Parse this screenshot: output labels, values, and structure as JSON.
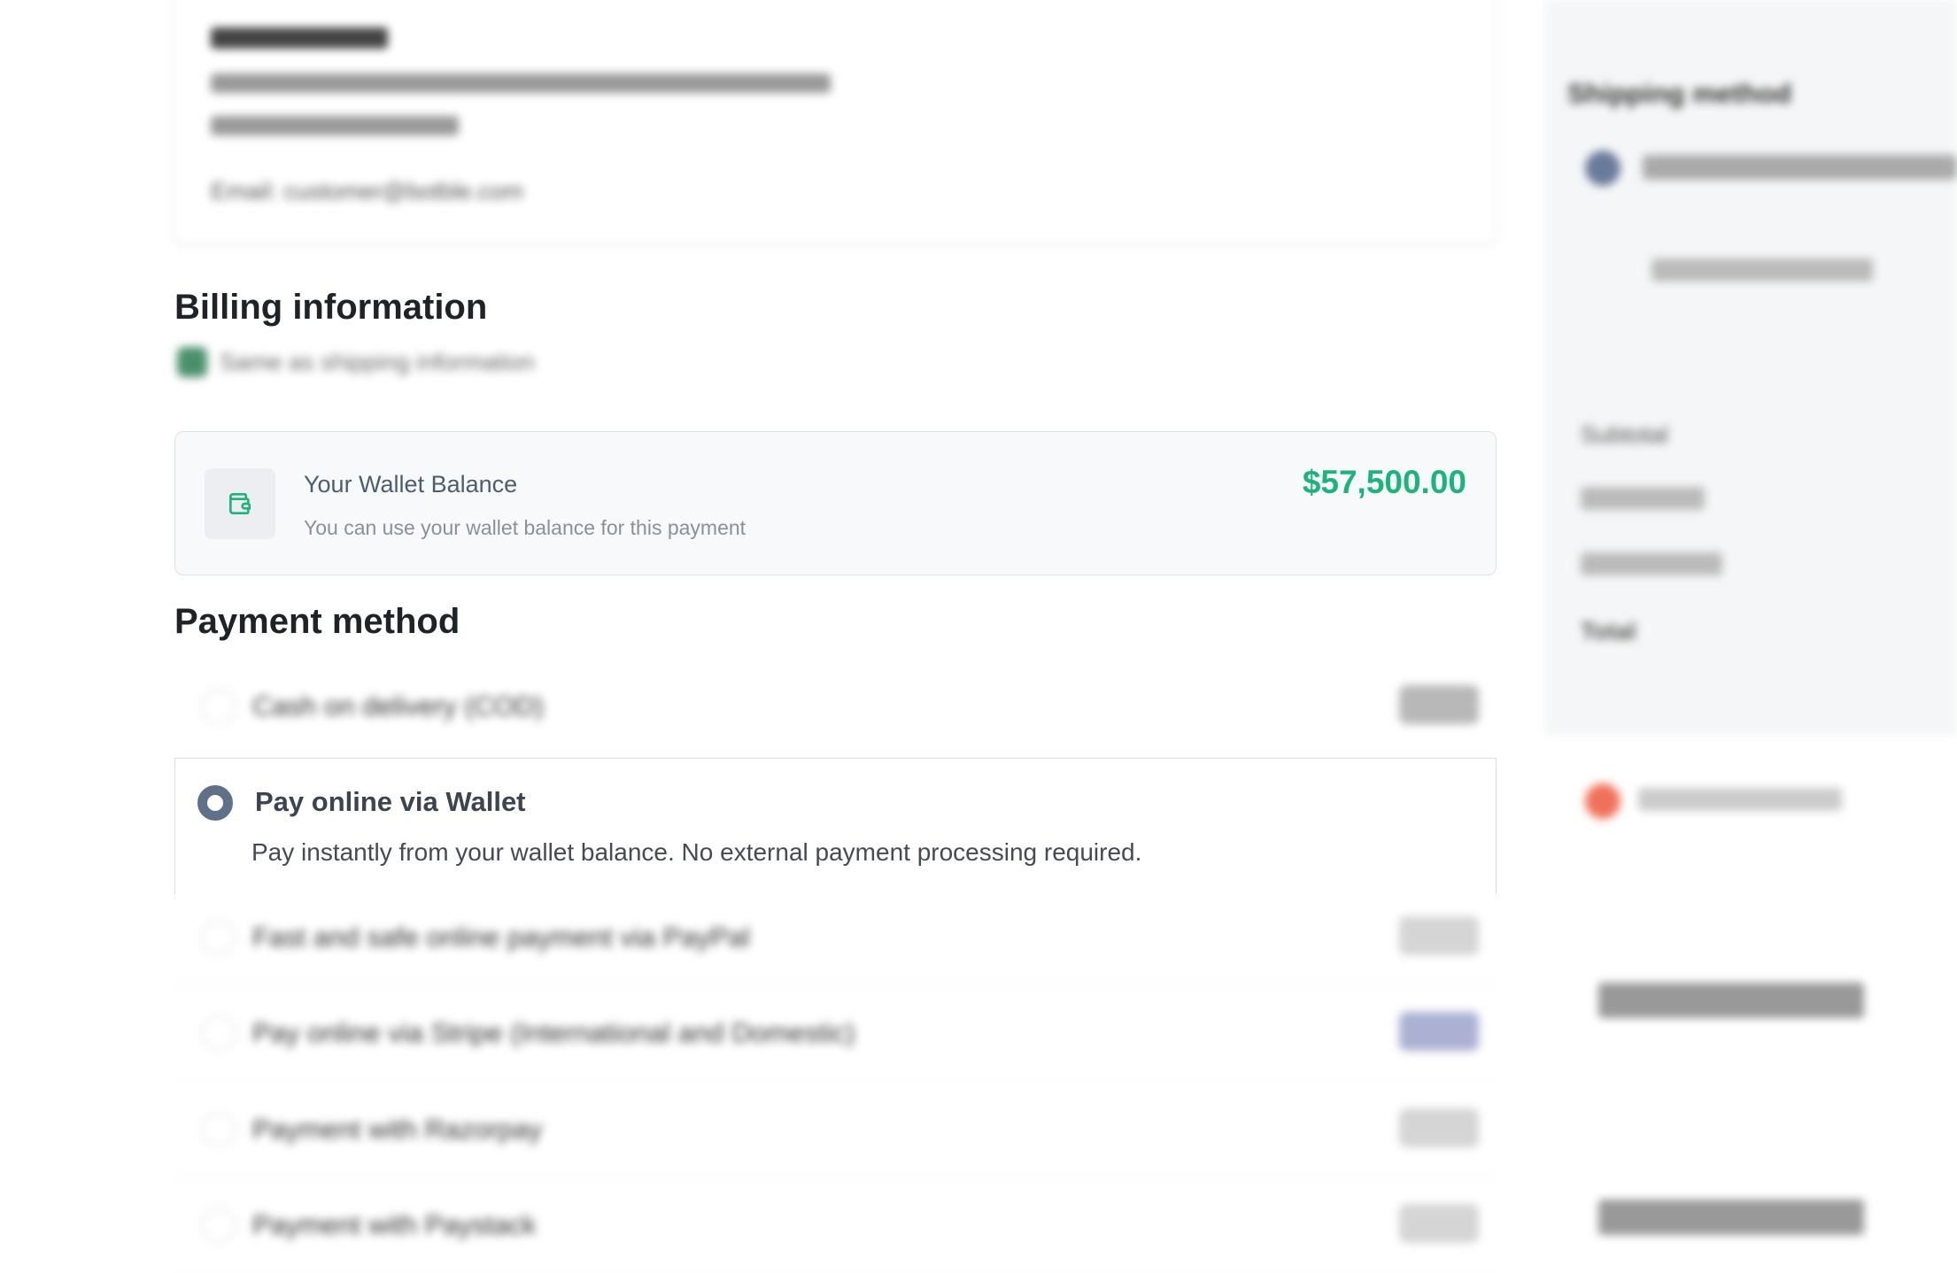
{
  "shipping_card": {
    "email": "Email: customer@botble.com"
  },
  "billing": {
    "heading": "Billing information",
    "same_as_shipping": "Same as shipping information"
  },
  "wallet": {
    "icon": "wallet-icon",
    "title": "Your Wallet Balance",
    "subtitle": "You can use your wallet balance for this payment",
    "amount": "$57,500.00",
    "amount_color": "#1db47b"
  },
  "payment": {
    "heading": "Payment method",
    "options": [
      {
        "label": "Cash on delivery (COD)",
        "selected": false
      },
      {
        "label": "Pay online via Wallet",
        "description": "Pay instantly from your wallet balance. No external payment processing required.",
        "selected": true
      },
      {
        "label": "Fast and safe online payment via PayPal",
        "selected": false
      },
      {
        "label": "Pay online via Stripe (International and Domestic)",
        "selected": false
      },
      {
        "label": "Payment with Razorpay",
        "selected": false
      },
      {
        "label": "Payment with Paystack",
        "selected": false
      }
    ],
    "accent": "#5f7189"
  },
  "sidebar": {
    "shipping_heading": "Shipping method",
    "subtotal": "Subtotal",
    "total": "Total"
  }
}
